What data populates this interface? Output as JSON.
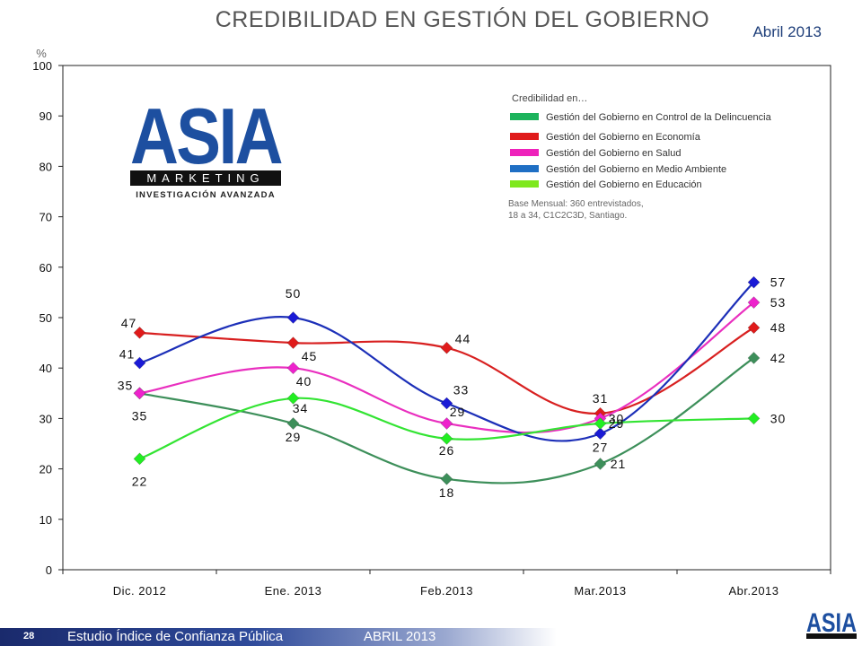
{
  "header": {
    "title": "CREDIBILIDAD EN GESTIÓN DEL GOBIERNO",
    "date": "Abril 2013"
  },
  "logo": {
    "brand": "ASIA",
    "word": "MARKETING",
    "tagline": "INVESTIGACIÓN AVANZADA"
  },
  "footer": {
    "page": "28",
    "study": "Estudio Índice de Confianza Pública",
    "month": "ABRIL 2013"
  },
  "chart_data": {
    "type": "line",
    "ylabel": "%",
    "ylim": [
      0,
      100
    ],
    "yticks": [
      0,
      10,
      20,
      30,
      40,
      50,
      60,
      70,
      80,
      90,
      100
    ],
    "categories": [
      "Dic. 2012",
      "Ene. 2013",
      "Feb.2013",
      "Mar.2013",
      "Abr.2013"
    ],
    "legend_title": "Credibilidad en…",
    "note": "Base Mensual: 360 entrevistados, 18 a 34, C1C2C3D, Santiago.",
    "legend_position": "top-right",
    "series": [
      {
        "name": "Gestión del Gobierno en Control de la Delincuencia",
        "legend_color": "#1db35c",
        "line_color": "#3d8f5a",
        "marker_color": "#3d8f5a",
        "values": [
          35,
          29,
          18,
          21,
          42
        ]
      },
      {
        "name": "Gestión del Gobierno en Economía",
        "legend_color": "#e01b1b",
        "line_color": "#d82020",
        "marker_color": "#e01b1b",
        "values": [
          47,
          45,
          44,
          31,
          48
        ]
      },
      {
        "name": "Gestión del Gobierno en Salud",
        "legend_color": "#ee22bb",
        "line_color": "#e92fbf",
        "marker_color": "#ee22cc",
        "values": [
          35,
          40,
          29,
          30,
          53
        ]
      },
      {
        "name": "Gestión del Gobierno en Medio Ambiente",
        "legend_color": "#1f6fc4",
        "line_color": "#1c2fb8",
        "marker_color": "#1a1ad6",
        "values": [
          41,
          50,
          33,
          27,
          57
        ]
      },
      {
        "name": "Gestión del Gobierno en Educación",
        "legend_color": "#7ee81e",
        "line_color": "#33e433",
        "marker_color": "#22ee22",
        "values": [
          22,
          34,
          26,
          29,
          30
        ]
      }
    ]
  }
}
